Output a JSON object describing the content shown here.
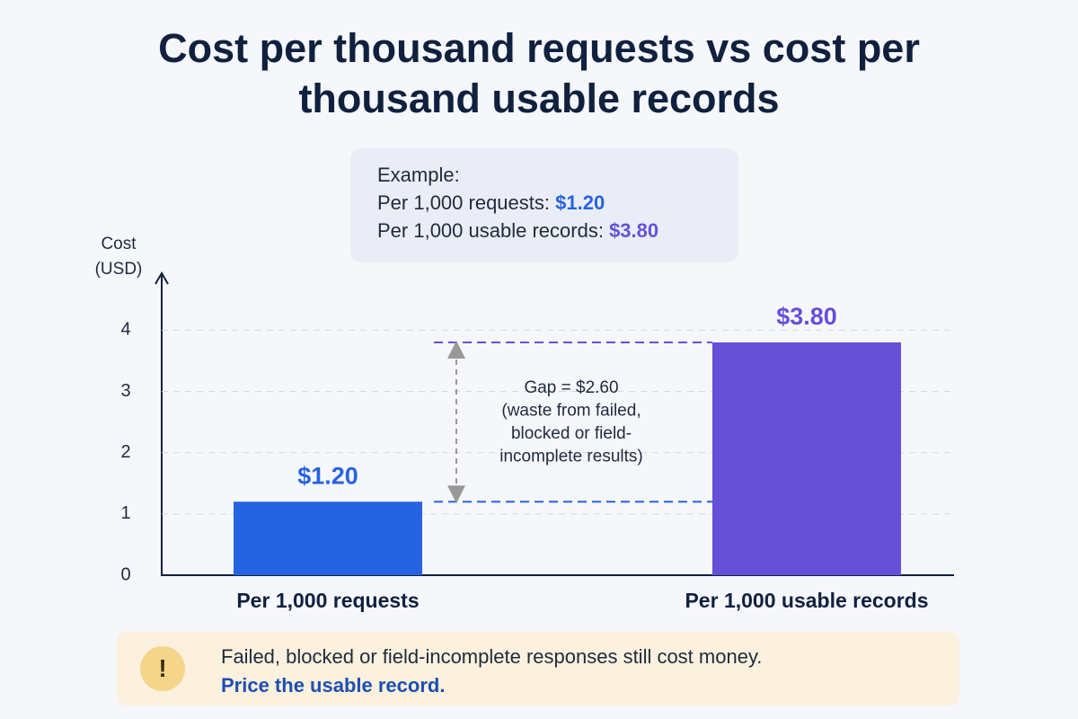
{
  "chart_data": {
    "type": "bar",
    "title": "Cost per thousand requests vs cost per thousand usable records",
    "y_label": "Cost (USD)",
    "categories": [
      "Per 1,000 requests",
      "Per 1,000 usable records"
    ],
    "values": [
      1.2,
      3.8
    ],
    "value_labels": [
      "$1.20",
      "$3.80"
    ],
    "colors": [
      "#2563e0",
      "#6650d8"
    ],
    "ylim": [
      0,
      4.9
    ],
    "yticks": [
      0,
      1,
      2,
      3,
      4
    ],
    "grid": true,
    "example": {
      "heading": "Example:",
      "lines": [
        {
          "label": "Per 1,000 requests:",
          "value": "$1.20"
        },
        {
          "label": "Per 1,000 usable records:",
          "value": "$3.80"
        }
      ]
    },
    "annotation": [
      "Gap = $2.60",
      "(waste from failed,",
      "blocked or field-",
      "incomplete results)"
    ],
    "note": {
      "icon": "!",
      "text": "Failed, blocked or field-incomplete responses still cost money.",
      "emphasis": "Price the usable record."
    }
  }
}
